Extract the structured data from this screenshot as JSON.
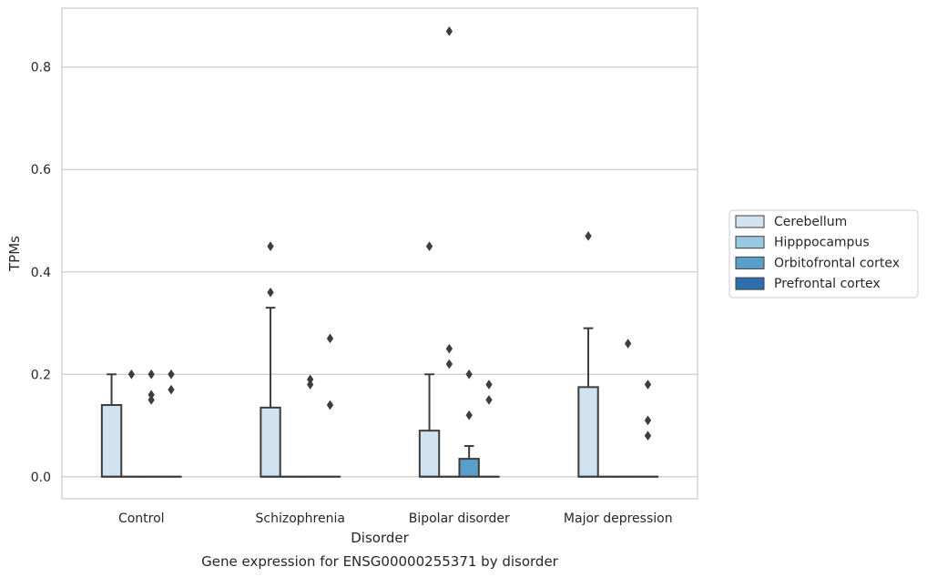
{
  "chart_data": {
    "type": "box",
    "title": "Gene expression for ENSG00000255371 by disorder",
    "xlabel": "Disorder",
    "ylabel": "TPMs",
    "ylim": [
      -0.043,
      0.915
    ],
    "yticks": [
      0.0,
      0.2,
      0.4,
      0.6,
      0.8
    ],
    "ytick_labels": [
      "0.0",
      "0.2",
      "0.4",
      "0.6",
      "0.8"
    ],
    "grid": "horizontal",
    "legend_position": "right",
    "categories": [
      "Control",
      "Schizophrenia",
      "Bipolar disorder",
      "Major depression"
    ],
    "series": [
      {
        "name": "Cerebellum",
        "color": "#d1e2f1",
        "boxes": [
          {
            "q1": 0.0,
            "median": 0.0,
            "q3": 0.14,
            "whisker_low": 0.0,
            "whisker_high": 0.2,
            "outliers": []
          },
          {
            "q1": 0.0,
            "median": 0.0,
            "q3": 0.135,
            "whisker_low": 0.0,
            "whisker_high": 0.33,
            "outliers": [
              0.36,
              0.45
            ]
          },
          {
            "q1": 0.0,
            "median": 0.0,
            "q3": 0.09,
            "whisker_low": 0.0,
            "whisker_high": 0.2,
            "outliers": [
              0.45
            ]
          },
          {
            "q1": 0.0,
            "median": 0.0,
            "q3": 0.175,
            "whisker_low": 0.0,
            "whisker_high": 0.29,
            "outliers": [
              0.47
            ]
          }
        ]
      },
      {
        "name": "Hipppocampus",
        "color": "#9ac8e0",
        "boxes": [
          {
            "q1": 0.0,
            "median": 0.0,
            "q3": 0.0,
            "whisker_low": 0.0,
            "whisker_high": 0.0,
            "outliers": [
              0.2
            ]
          },
          {
            "q1": 0.0,
            "median": 0.0,
            "q3": 0.0,
            "whisker_low": 0.0,
            "whisker_high": 0.0,
            "outliers": []
          },
          {
            "q1": 0.0,
            "median": 0.0,
            "q3": 0.0,
            "whisker_low": 0.0,
            "whisker_high": 0.0,
            "outliers": [
              0.87,
              0.25,
              0.22
            ]
          },
          {
            "q1": 0.0,
            "median": 0.0,
            "q3": 0.0,
            "whisker_low": 0.0,
            "whisker_high": 0.0,
            "outliers": []
          }
        ]
      },
      {
        "name": "Orbitofrontal cortex",
        "color": "#5a9fca",
        "boxes": [
          {
            "q1": 0.0,
            "median": 0.0,
            "q3": 0.0,
            "whisker_low": 0.0,
            "whisker_high": 0.0,
            "outliers": [
              0.2,
              0.16,
              0.15
            ]
          },
          {
            "q1": 0.0,
            "median": 0.0,
            "q3": 0.0,
            "whisker_low": 0.0,
            "whisker_high": 0.0,
            "outliers": [
              0.19,
              0.18
            ]
          },
          {
            "q1": 0.0,
            "median": 0.0,
            "q3": 0.035,
            "whisker_low": 0.0,
            "whisker_high": 0.06,
            "outliers": [
              0.2,
              0.12
            ]
          },
          {
            "q1": 0.0,
            "median": 0.0,
            "q3": 0.0,
            "whisker_low": 0.0,
            "whisker_high": 0.0,
            "outliers": [
              0.26
            ]
          }
        ]
      },
      {
        "name": "Prefrontal cortex",
        "color": "#2d6eaf",
        "boxes": [
          {
            "q1": 0.0,
            "median": 0.0,
            "q3": 0.0,
            "whisker_low": 0.0,
            "whisker_high": 0.0,
            "outliers": [
              0.2,
              0.17
            ]
          },
          {
            "q1": 0.0,
            "median": 0.0,
            "q3": 0.0,
            "whisker_low": 0.0,
            "whisker_high": 0.0,
            "outliers": [
              0.27,
              0.14
            ]
          },
          {
            "q1": 0.0,
            "median": 0.0,
            "q3": 0.0,
            "whisker_low": 0.0,
            "whisker_high": 0.0,
            "outliers": [
              0.18,
              0.15
            ]
          },
          {
            "q1": 0.0,
            "median": 0.0,
            "q3": 0.0,
            "whisker_low": 0.0,
            "whisker_high": 0.0,
            "outliers": [
              0.18,
              0.11,
              0.08
            ]
          }
        ]
      }
    ]
  }
}
